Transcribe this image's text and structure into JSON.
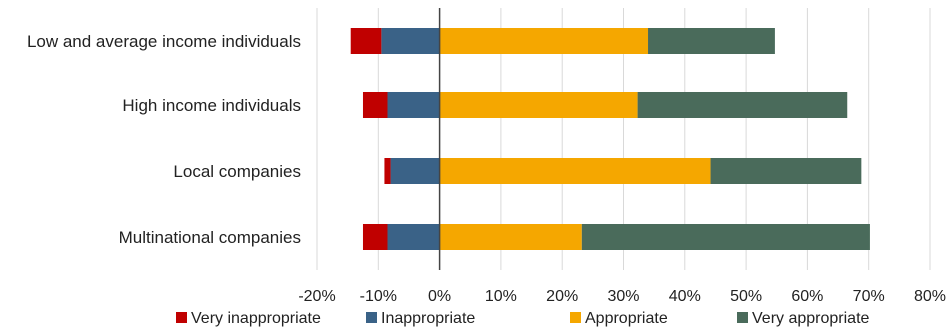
{
  "chart_data": {
    "type": "bar",
    "orientation": "horizontal",
    "stacked": true,
    "diverging": true,
    "title": "",
    "xlabel": "",
    "ylabel": "",
    "categories": [
      "Low and average income individuals",
      "High income individuals",
      "Local companies",
      "Multinational companies"
    ],
    "series": [
      {
        "name": "Very inappropriate",
        "color": "#c00000",
        "values": [
          -5,
          -4,
          -1,
          -4
        ]
      },
      {
        "name": "Inappropriate",
        "color": "#3a6287",
        "values": [
          -9.5,
          -8.5,
          -8,
          -8.5
        ]
      },
      {
        "name": "Appropriate",
        "color": "#f5a700",
        "values": [
          34,
          32.3,
          44.2,
          23.2
        ]
      },
      {
        "name": "Very appropriate",
        "color": "#4a6b5b",
        "values": [
          20.7,
          34.2,
          24.6,
          47
        ]
      }
    ],
    "xlim": [
      -20,
      80
    ],
    "x_ticks": [
      "-20%",
      "-10%",
      "0%",
      "10%",
      "20%",
      "30%",
      "40%",
      "50%",
      "60%",
      "70%",
      "80%"
    ],
    "x_tick_values": [
      -20,
      -10,
      0,
      10,
      20,
      30,
      40,
      50,
      60,
      70,
      80
    ],
    "grid": true,
    "legend_position": "bottom"
  }
}
